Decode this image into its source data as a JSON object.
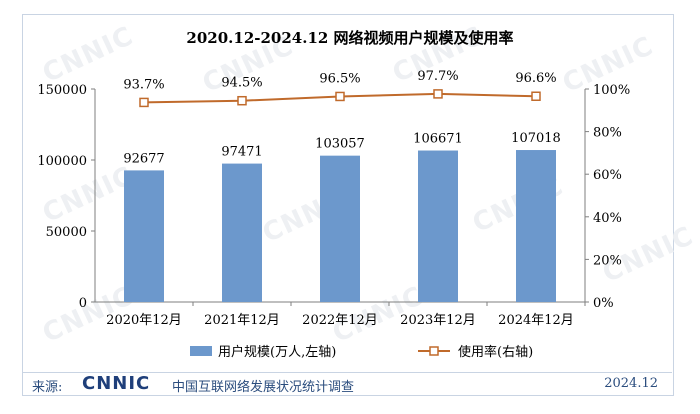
{
  "title": "2020.12-2024.12 网络视频用户规模及使用率",
  "watermark": "CNNIC",
  "source": {
    "label": "来源:",
    "logo": "CNNIC",
    "org": "中国互联网络发展状况统计调查",
    "date": "2024.12"
  },
  "colors": {
    "bar": "#6c98cc",
    "line": "#c06a2b",
    "border": "#c9d4e3"
  },
  "chart_data": {
    "type": "bar",
    "categories": [
      "2020年12月",
      "2021年12月",
      "2022年12月",
      "2023年12月",
      "2024年12月"
    ],
    "series": [
      {
        "name": "用户规模(万人,左轴)",
        "type": "bar",
        "axis": "left",
        "values": [
          92677,
          97471,
          103057,
          106671,
          107018
        ],
        "labels": [
          "92677",
          "97471",
          "103057",
          "106671",
          "107018"
        ]
      },
      {
        "name": "使用率(右轴)",
        "type": "line",
        "axis": "right",
        "values": [
          93.7,
          94.5,
          96.5,
          97.7,
          96.6
        ],
        "labels": [
          "93.7%",
          "94.5%",
          "96.5%",
          "97.7%",
          "96.6%"
        ]
      }
    ],
    "y_left": {
      "range": [
        0,
        150000
      ],
      "ticks": [
        "0",
        "50000",
        "100000",
        "150000"
      ]
    },
    "y_right": {
      "range": [
        0,
        100
      ],
      "ticks": [
        "0%",
        "20%",
        "40%",
        "60%",
        "80%",
        "100%"
      ]
    },
    "grid": false,
    "legend_position": "bottom"
  }
}
